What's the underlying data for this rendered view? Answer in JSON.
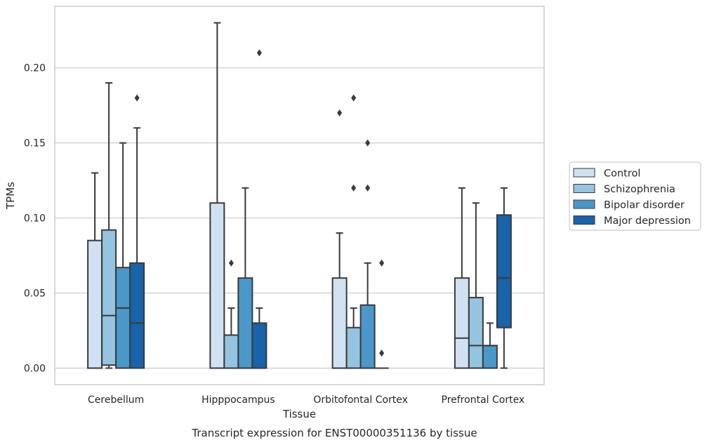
{
  "chart_data": {
    "type": "box",
    "caption": "Transcript expression for ENST00000351136 by tissue",
    "xlabel": "Tissue",
    "ylabel": "TPMs",
    "ylim": [
      -0.011,
      0.241
    ],
    "yticks": [
      "0.00",
      "0.05",
      "0.10",
      "0.15",
      "0.20"
    ],
    "ytick_values": [
      0,
      0.05,
      0.1,
      0.15,
      0.2
    ],
    "grid": true,
    "legend_position": "right",
    "categories": [
      "Cerebellum",
      "Hipppocampus",
      "Orbitofontal Cortex",
      "Prefrontal Cortex"
    ],
    "series": [
      {
        "name": "Control",
        "color": "#d0e1f2",
        "boxes": [
          {
            "q1": 0,
            "median": 0,
            "q3": 0.085,
            "whisker_low": 0,
            "whisker_high": 0.13,
            "outliers": []
          },
          {
            "q1": 0,
            "median": 0,
            "q3": 0.11,
            "whisker_low": 0,
            "whisker_high": 0.23,
            "outliers": []
          },
          {
            "q1": 0,
            "median": 0,
            "q3": 0.06,
            "whisker_low": 0,
            "whisker_high": 0.09,
            "outliers": [
              0.17
            ]
          },
          {
            "q1": 0,
            "median": 0.02,
            "q3": 0.06,
            "whisker_low": 0,
            "whisker_high": 0.12,
            "outliers": []
          }
        ]
      },
      {
        "name": "Schizophrenia",
        "color": "#94c4df",
        "boxes": [
          {
            "q1": 0.002,
            "median": 0.035,
            "q3": 0.092,
            "whisker_low": 0,
            "whisker_high": 0.19,
            "outliers": []
          },
          {
            "q1": 0,
            "median": 0,
            "q3": 0.022,
            "whisker_low": 0,
            "whisker_high": 0.04,
            "outliers": [
              0.07
            ]
          },
          {
            "q1": 0,
            "median": 0,
            "q3": 0.027,
            "whisker_low": 0,
            "whisker_high": 0.04,
            "outliers": [
              0.12,
              0.18
            ]
          },
          {
            "q1": 0,
            "median": 0.015,
            "q3": 0.047,
            "whisker_low": 0,
            "whisker_high": 0.11,
            "outliers": []
          }
        ]
      },
      {
        "name": "Bipolar disorder",
        "color": "#4a98c9",
        "boxes": [
          {
            "q1": 0,
            "median": 0.04,
            "q3": 0.067,
            "whisker_low": 0,
            "whisker_high": 0.15,
            "outliers": []
          },
          {
            "q1": 0,
            "median": 0,
            "q3": 0.06,
            "whisker_low": 0,
            "whisker_high": 0.12,
            "outliers": []
          },
          {
            "q1": 0,
            "median": 0,
            "q3": 0.042,
            "whisker_low": 0,
            "whisker_high": 0.07,
            "outliers": [
              0.12,
              0.15
            ]
          },
          {
            "q1": 0,
            "median": 0.015,
            "q3": 0.015,
            "whisker_low": 0,
            "whisker_high": 0.03,
            "outliers": []
          }
        ]
      },
      {
        "name": "Major depression",
        "color": "#1764ab",
        "boxes": [
          {
            "q1": 0,
            "median": 0.03,
            "q3": 0.07,
            "whisker_low": 0,
            "whisker_high": 0.16,
            "outliers": [
              0.18
            ]
          },
          {
            "q1": 0,
            "median": 0,
            "q3": 0.03,
            "whisker_low": 0,
            "whisker_high": 0.04,
            "outliers": [
              0.21
            ]
          },
          {
            "q1": 0,
            "median": 0,
            "q3": 0,
            "whisker_low": 0,
            "whisker_high": 0,
            "outliers": [
              0.01,
              0.07
            ]
          },
          {
            "q1": 0.027,
            "median": 0.06,
            "q3": 0.102,
            "whisker_low": 0,
            "whisker_high": 0.12,
            "outliers": []
          }
        ]
      }
    ]
  },
  "colors": {
    "grid": "#cccccc",
    "frame": "#cccccc",
    "stroke": "#3a3a3a"
  }
}
